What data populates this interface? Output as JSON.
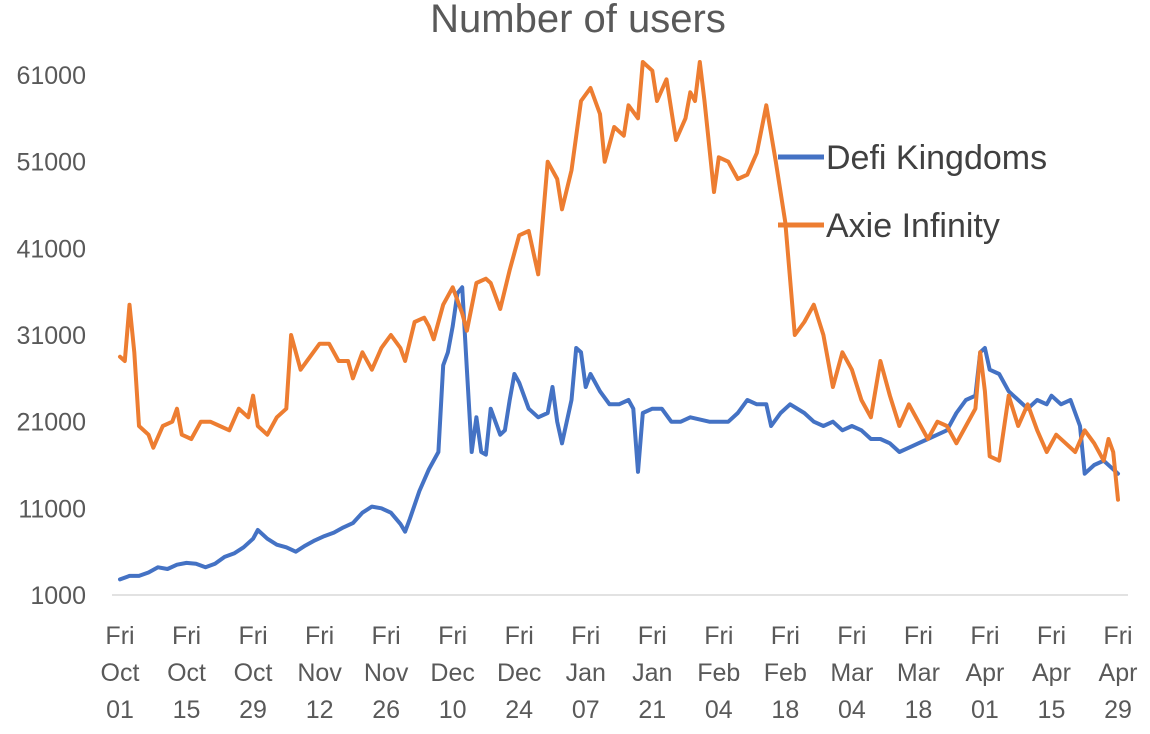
{
  "chart_data": {
    "type": "line",
    "title": "Number of users",
    "xlabel": "",
    "ylabel": "",
    "ylim": [
      1000,
      61000
    ],
    "yticks": [
      1000,
      11000,
      21000,
      31000,
      41000,
      51000,
      61000
    ],
    "grid": false,
    "legend": "right",
    "x_start": "2021-10-01",
    "x_end": "2022-04-29",
    "xtick_labels": [
      [
        "Fri",
        "Oct",
        "01"
      ],
      [
        "Fri",
        "Oct",
        "15"
      ],
      [
        "Fri",
        "Oct",
        "29"
      ],
      [
        "Fri",
        "Nov",
        "12"
      ],
      [
        "Fri",
        "Nov",
        "26"
      ],
      [
        "Fri",
        "Dec",
        "10"
      ],
      [
        "Fri",
        "Dec",
        "24"
      ],
      [
        "Fri",
        "Jan",
        "07"
      ],
      [
        "Fri",
        "Jan",
        "21"
      ],
      [
        "Fri",
        "Feb",
        "04"
      ],
      [
        "Fri",
        "Feb",
        "18"
      ],
      [
        "Fri",
        "Mar",
        "04"
      ],
      [
        "Fri",
        "Mar",
        "18"
      ],
      [
        "Fri",
        "Apr",
        "01"
      ],
      [
        "Fri",
        "Apr",
        "15"
      ],
      [
        "Fri",
        "Apr",
        "29"
      ]
    ],
    "series": [
      {
        "name": "Defi Kingdoms",
        "color": "#4472c4",
        "points": [
          [
            "2021-10-01",
            2800
          ],
          [
            "2021-10-03",
            3200
          ],
          [
            "2021-10-05",
            3200
          ],
          [
            "2021-10-07",
            3600
          ],
          [
            "2021-10-09",
            4200
          ],
          [
            "2021-10-11",
            4000
          ],
          [
            "2021-10-13",
            4500
          ],
          [
            "2021-10-15",
            4700
          ],
          [
            "2021-10-17",
            4600
          ],
          [
            "2021-10-19",
            4200
          ],
          [
            "2021-10-21",
            4600
          ],
          [
            "2021-10-23",
            5400
          ],
          [
            "2021-10-25",
            5800
          ],
          [
            "2021-10-27",
            6500
          ],
          [
            "2021-10-29",
            7500
          ],
          [
            "2021-10-30",
            8500
          ],
          [
            "2021-11-01",
            7500
          ],
          [
            "2021-11-03",
            6800
          ],
          [
            "2021-11-05",
            6500
          ],
          [
            "2021-11-07",
            6000
          ],
          [
            "2021-11-09",
            6700
          ],
          [
            "2021-11-11",
            7300
          ],
          [
            "2021-11-13",
            7800
          ],
          [
            "2021-11-15",
            8200
          ],
          [
            "2021-11-17",
            8800
          ],
          [
            "2021-11-19",
            9300
          ],
          [
            "2021-11-21",
            10500
          ],
          [
            "2021-11-23",
            11200
          ],
          [
            "2021-11-25",
            11000
          ],
          [
            "2021-11-27",
            10500
          ],
          [
            "2021-11-29",
            9200
          ],
          [
            "2021-11-30",
            8300
          ],
          [
            "2021-12-01",
            9800
          ],
          [
            "2021-12-03",
            13000
          ],
          [
            "2021-12-05",
            15500
          ],
          [
            "2021-12-07",
            17500
          ],
          [
            "2021-12-08",
            27500
          ],
          [
            "2021-12-09",
            29000
          ],
          [
            "2021-12-10",
            32000
          ],
          [
            "2021-12-11",
            35800
          ],
          [
            "2021-12-12",
            36500
          ],
          [
            "2021-12-13",
            27000
          ],
          [
            "2021-12-14",
            17500
          ],
          [
            "2021-12-15",
            21500
          ],
          [
            "2021-12-16",
            17500
          ],
          [
            "2021-12-17",
            17200
          ],
          [
            "2021-12-18",
            22500
          ],
          [
            "2021-12-19",
            21000
          ],
          [
            "2021-12-20",
            19500
          ],
          [
            "2021-12-21",
            20000
          ],
          [
            "2021-12-22",
            23500
          ],
          [
            "2021-12-23",
            26500
          ],
          [
            "2021-12-24",
            25500
          ],
          [
            "2021-12-26",
            22500
          ],
          [
            "2021-12-28",
            21500
          ],
          [
            "2021-12-30",
            22000
          ],
          [
            "2021-12-31",
            25000
          ],
          [
            "2022-01-01",
            21000
          ],
          [
            "2022-01-02",
            18500
          ],
          [
            "2022-01-04",
            23500
          ],
          [
            "2022-01-05",
            29500
          ],
          [
            "2022-01-06",
            29000
          ],
          [
            "2022-01-07",
            25000
          ],
          [
            "2022-01-08",
            26500
          ],
          [
            "2022-01-10",
            24500
          ],
          [
            "2022-01-12",
            23000
          ],
          [
            "2022-01-14",
            23000
          ],
          [
            "2022-01-16",
            23500
          ],
          [
            "2022-01-17",
            22500
          ],
          [
            "2022-01-18",
            15200
          ],
          [
            "2022-01-19",
            22000
          ],
          [
            "2022-01-21",
            22500
          ],
          [
            "2022-01-23",
            22500
          ],
          [
            "2022-01-25",
            21000
          ],
          [
            "2022-01-27",
            21000
          ],
          [
            "2022-01-29",
            21500
          ],
          [
            "2022-02-02",
            21000
          ],
          [
            "2022-02-06",
            21000
          ],
          [
            "2022-02-08",
            22000
          ],
          [
            "2022-02-10",
            23500
          ],
          [
            "2022-02-12",
            23000
          ],
          [
            "2022-02-14",
            23000
          ],
          [
            "2022-02-15",
            20500
          ],
          [
            "2022-02-17",
            22000
          ],
          [
            "2022-02-19",
            23000
          ],
          [
            "2022-02-22",
            22000
          ],
          [
            "2022-02-24",
            21000
          ],
          [
            "2022-02-26",
            20500
          ],
          [
            "2022-02-28",
            21000
          ],
          [
            "2022-03-02",
            20000
          ],
          [
            "2022-03-04",
            20500
          ],
          [
            "2022-03-06",
            20000
          ],
          [
            "2022-03-08",
            19000
          ],
          [
            "2022-03-10",
            19000
          ],
          [
            "2022-03-12",
            18500
          ],
          [
            "2022-03-14",
            17500
          ],
          [
            "2022-03-16",
            18000
          ],
          [
            "2022-03-18",
            18500
          ],
          [
            "2022-03-20",
            19000
          ],
          [
            "2022-03-22",
            19500
          ],
          [
            "2022-03-24",
            20000
          ],
          [
            "2022-03-26",
            22000
          ],
          [
            "2022-03-28",
            23500
          ],
          [
            "2022-03-30",
            24000
          ],
          [
            "2022-03-31",
            29000
          ],
          [
            "2022-04-01",
            29500
          ],
          [
            "2022-04-02",
            27000
          ],
          [
            "2022-04-04",
            26500
          ],
          [
            "2022-04-06",
            24500
          ],
          [
            "2022-04-08",
            23500
          ],
          [
            "2022-04-10",
            22500
          ],
          [
            "2022-04-12",
            23500
          ],
          [
            "2022-04-14",
            23000
          ],
          [
            "2022-04-15",
            24000
          ],
          [
            "2022-04-17",
            23000
          ],
          [
            "2022-04-19",
            23500
          ],
          [
            "2022-04-21",
            20500
          ],
          [
            "2022-04-22",
            15000
          ],
          [
            "2022-04-24",
            16000
          ],
          [
            "2022-04-26",
            16500
          ],
          [
            "2022-04-28",
            15500
          ],
          [
            "2022-04-29",
            15000
          ]
        ]
      },
      {
        "name": "Axie Infinity",
        "color": "#ed7d31",
        "points": [
          [
            "2021-10-01",
            28500
          ],
          [
            "2021-10-02",
            28000
          ],
          [
            "2021-10-03",
            34500
          ],
          [
            "2021-10-04",
            29000
          ],
          [
            "2021-10-05",
            20500
          ],
          [
            "2021-10-07",
            19500
          ],
          [
            "2021-10-08",
            18000
          ],
          [
            "2021-10-10",
            20500
          ],
          [
            "2021-10-12",
            21000
          ],
          [
            "2021-10-13",
            22500
          ],
          [
            "2021-10-14",
            19500
          ],
          [
            "2021-10-16",
            19000
          ],
          [
            "2021-10-18",
            21000
          ],
          [
            "2021-10-20",
            21000
          ],
          [
            "2021-10-22",
            20500
          ],
          [
            "2021-10-24",
            20000
          ],
          [
            "2021-10-26",
            22500
          ],
          [
            "2021-10-28",
            21500
          ],
          [
            "2021-10-29",
            24000
          ],
          [
            "2021-10-30",
            20500
          ],
          [
            "2021-11-01",
            19500
          ],
          [
            "2021-11-03",
            21500
          ],
          [
            "2021-11-05",
            22500
          ],
          [
            "2021-11-06",
            31000
          ],
          [
            "2021-11-08",
            27000
          ],
          [
            "2021-11-10",
            28500
          ],
          [
            "2021-11-12",
            30000
          ],
          [
            "2021-11-14",
            30000
          ],
          [
            "2021-11-16",
            28000
          ],
          [
            "2021-11-18",
            28000
          ],
          [
            "2021-11-19",
            26000
          ],
          [
            "2021-11-21",
            29000
          ],
          [
            "2021-11-23",
            27000
          ],
          [
            "2021-11-25",
            29500
          ],
          [
            "2021-11-27",
            31000
          ],
          [
            "2021-11-29",
            29500
          ],
          [
            "2021-11-30",
            28000
          ],
          [
            "2021-12-02",
            32500
          ],
          [
            "2021-12-04",
            33000
          ],
          [
            "2021-12-05",
            32000
          ],
          [
            "2021-12-06",
            30500
          ],
          [
            "2021-12-08",
            34500
          ],
          [
            "2021-12-10",
            36500
          ],
          [
            "2021-12-12",
            33500
          ],
          [
            "2021-12-13",
            31500
          ],
          [
            "2021-12-15",
            37000
          ],
          [
            "2021-12-17",
            37500
          ],
          [
            "2021-12-18",
            37000
          ],
          [
            "2021-12-20",
            34000
          ],
          [
            "2021-12-22",
            38500
          ],
          [
            "2021-12-24",
            42500
          ],
          [
            "2021-12-26",
            43000
          ],
          [
            "2021-12-28",
            38000
          ],
          [
            "2021-12-30",
            51000
          ],
          [
            "2022-01-01",
            49000
          ],
          [
            "2022-01-02",
            45500
          ],
          [
            "2022-01-04",
            50000
          ],
          [
            "2022-01-06",
            58000
          ],
          [
            "2022-01-08",
            59500
          ],
          [
            "2022-01-10",
            56500
          ],
          [
            "2022-01-11",
            51000
          ],
          [
            "2022-01-13",
            55000
          ],
          [
            "2022-01-15",
            54000
          ],
          [
            "2022-01-16",
            57500
          ],
          [
            "2022-01-18",
            56000
          ],
          [
            "2022-01-19",
            62500
          ],
          [
            "2022-01-21",
            61500
          ],
          [
            "2022-01-22",
            58000
          ],
          [
            "2022-01-24",
            60500
          ],
          [
            "2022-01-26",
            53500
          ],
          [
            "2022-01-28",
            56000
          ],
          [
            "2022-01-29",
            59000
          ],
          [
            "2022-01-30",
            58000
          ],
          [
            "2022-01-31",
            62500
          ],
          [
            "2022-02-01",
            58000
          ],
          [
            "2022-02-03",
            47500
          ],
          [
            "2022-02-04",
            51500
          ],
          [
            "2022-02-06",
            51000
          ],
          [
            "2022-02-08",
            49000
          ],
          [
            "2022-02-10",
            49500
          ],
          [
            "2022-02-12",
            52000
          ],
          [
            "2022-02-14",
            57500
          ],
          [
            "2022-02-16",
            51000
          ],
          [
            "2022-02-18",
            44000
          ],
          [
            "2022-02-20",
            31000
          ],
          [
            "2022-02-22",
            32500
          ],
          [
            "2022-02-24",
            34500
          ],
          [
            "2022-02-26",
            31000
          ],
          [
            "2022-02-28",
            25000
          ],
          [
            "2022-03-02",
            29000
          ],
          [
            "2022-03-04",
            27000
          ],
          [
            "2022-03-06",
            23500
          ],
          [
            "2022-03-08",
            21500
          ],
          [
            "2022-03-10",
            28000
          ],
          [
            "2022-03-12",
            24000
          ],
          [
            "2022-03-14",
            20500
          ],
          [
            "2022-03-16",
            23000
          ],
          [
            "2022-03-18",
            21000
          ],
          [
            "2022-03-20",
            19000
          ],
          [
            "2022-03-22",
            21000
          ],
          [
            "2022-03-24",
            20500
          ],
          [
            "2022-03-26",
            18500
          ],
          [
            "2022-03-28",
            20500
          ],
          [
            "2022-03-30",
            22500
          ],
          [
            "2022-03-31",
            29000
          ],
          [
            "2022-04-01",
            24500
          ],
          [
            "2022-04-02",
            17000
          ],
          [
            "2022-04-04",
            16500
          ],
          [
            "2022-04-06",
            24000
          ],
          [
            "2022-04-08",
            20500
          ],
          [
            "2022-04-10",
            23000
          ],
          [
            "2022-04-12",
            20000
          ],
          [
            "2022-04-14",
            17500
          ],
          [
            "2022-04-16",
            19500
          ],
          [
            "2022-04-18",
            18500
          ],
          [
            "2022-04-20",
            17500
          ],
          [
            "2022-04-22",
            20000
          ],
          [
            "2022-04-24",
            18500
          ],
          [
            "2022-04-26",
            16500
          ],
          [
            "2022-04-27",
            19000
          ],
          [
            "2022-04-28",
            17500
          ],
          [
            "2022-04-29",
            12000
          ]
        ]
      }
    ]
  }
}
